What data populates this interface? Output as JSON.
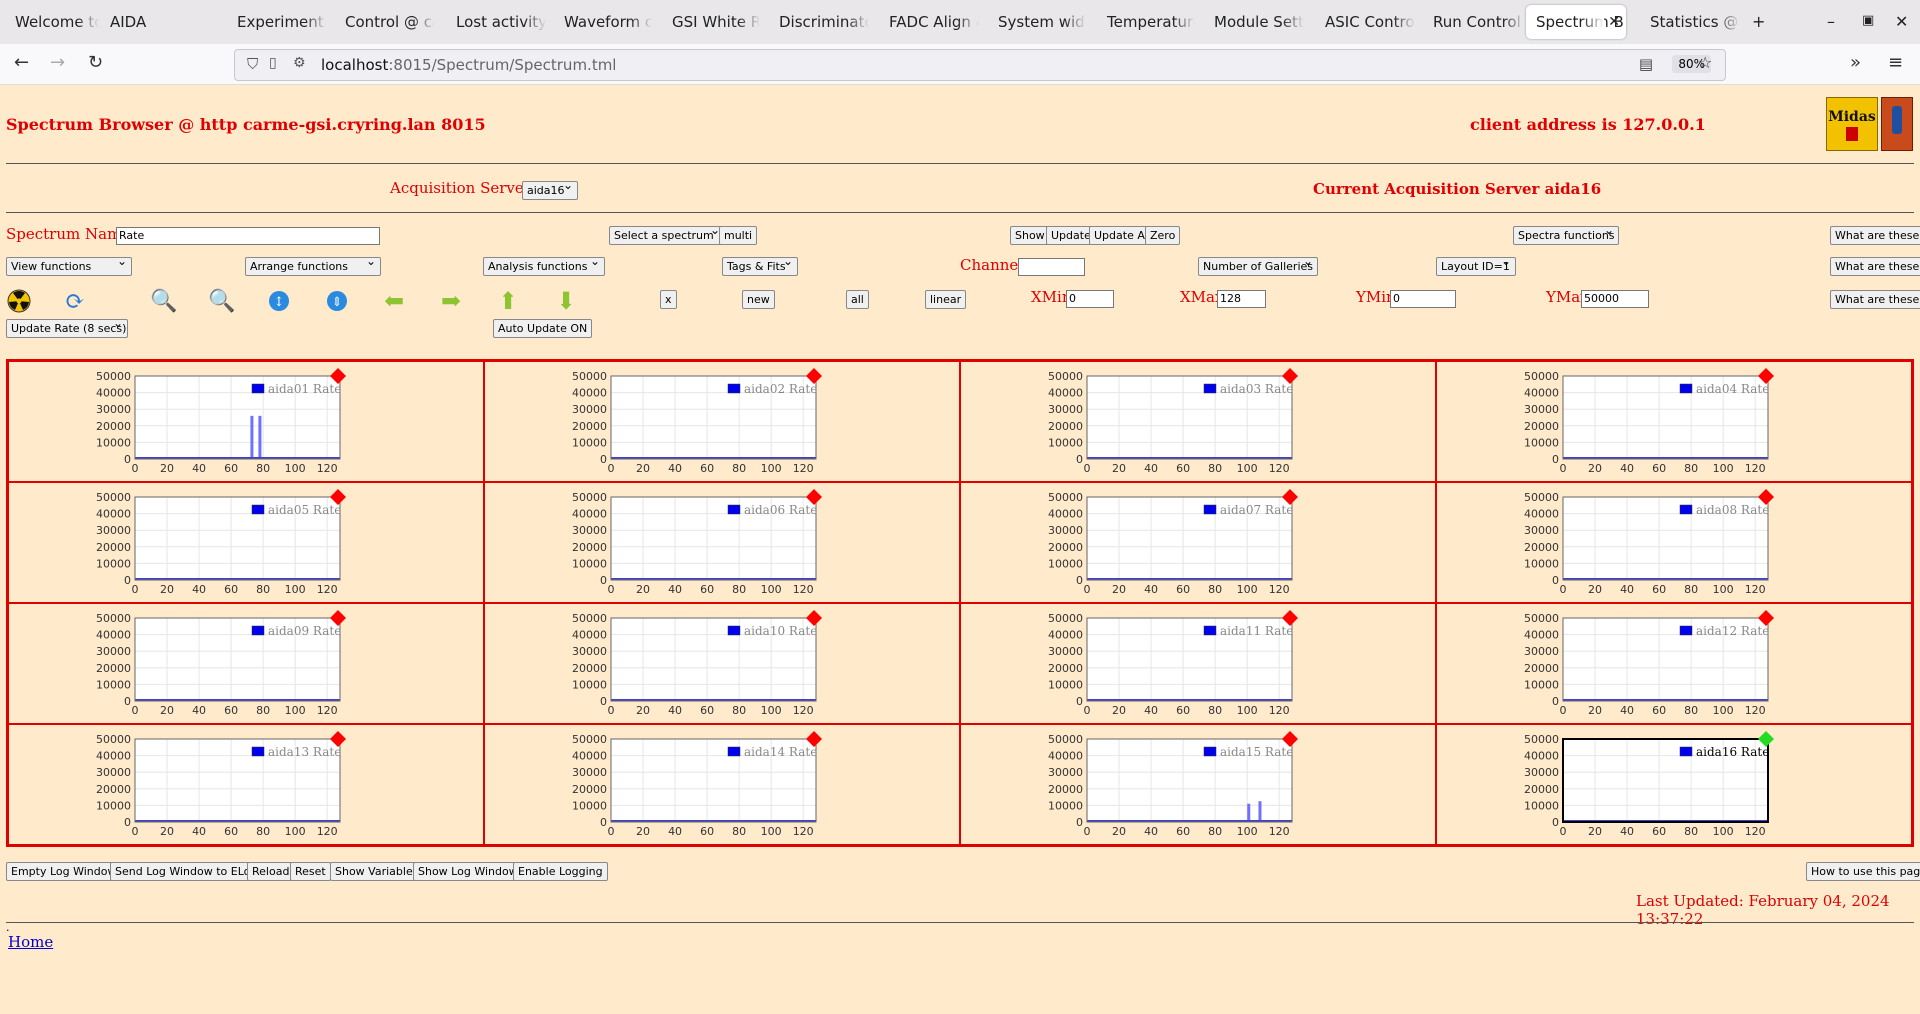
{
  "browser": {
    "tabs": [
      {
        "label": "Welcome to C"
      },
      {
        "label": "AIDA"
      },
      {
        "label": "Experiment C"
      },
      {
        "label": "Control @ ca"
      },
      {
        "label": "Lost activity r"
      },
      {
        "label": "Waveform ca"
      },
      {
        "label": "GSI White Ra"
      },
      {
        "label": "Discriminator"
      },
      {
        "label": "FADC Align &"
      },
      {
        "label": "System wide"
      },
      {
        "label": "Temperature"
      },
      {
        "label": "Module Settir"
      },
      {
        "label": "ASIC Control"
      },
      {
        "label": "Run Control @"
      },
      {
        "label": "Spectrum B"
      },
      {
        "label": "Statistics @"
      }
    ],
    "active_tab_index": 14,
    "new_tab": "+",
    "url_host": "localhost",
    "url_rest": ":8015/Spectrum/Spectrum.tml",
    "zoom": "80%"
  },
  "header": {
    "title": "Spectrum Browser @ http carme-gsi.cryring.lan 8015",
    "client": "client address is 127.0.0.1"
  },
  "acq": {
    "label": "Acquisition Servers",
    "server_select": "aida16",
    "current": "Current Acquisition Server aida16"
  },
  "controls": {
    "spectrum_name_label": "Spectrum Name:",
    "spectrum_name_value": "Rate",
    "select_spectrum": "Select a spectrum",
    "multi": "multi",
    "show": "Show",
    "update": "Update",
    "update_all": "Update All",
    "zero": "Zero",
    "spectra_functions": "Spectra functions",
    "what1": "What are these?",
    "view_functions": "View functions",
    "arrange_functions": "Arrange functions",
    "analysis_functions": "Analysis functions",
    "tags_fits": "Tags & Fits",
    "channel_label": "Channel:",
    "channel_value": "",
    "num_galleries": "Number of Galleries",
    "layout_id": "Layout ID=1",
    "what2": "What are these?",
    "x_btn": "x",
    "new_btn": "new",
    "all_btn": "all",
    "linear_btn": "linear",
    "xmin_label": "XMin",
    "xmin_value": "0",
    "xmax_label": "XMax",
    "xmax_value": "128",
    "ymin_label": "YMin",
    "ymin_value": "0",
    "ymax_label": "YMax",
    "ymax_value": "50000",
    "what3": "What are these?",
    "update_rate": "Update Rate (8 secs)",
    "auto_update": "Auto Update ON"
  },
  "toolbar_icons": [
    "radiation-icon",
    "refresh-icon",
    "zoom-in-icon",
    "zoom-out-icon",
    "expand-y-icon",
    "expand-x-icon",
    "arrow-left-icon",
    "arrow-right-icon",
    "arrow-up-icon",
    "arrow-down-icon"
  ],
  "chart_data": {
    "type": "bar",
    "xlim": [
      0,
      128
    ],
    "ylim": [
      0,
      50000
    ],
    "x_ticks": [
      0,
      20,
      40,
      60,
      80,
      100,
      120
    ],
    "y_ticks": [
      0,
      10000,
      20000,
      30000,
      40000,
      50000
    ],
    "colors": {
      "bars": "#7070ff",
      "legend": "#0000ee",
      "marker_red": "#ff0000",
      "marker_green": "#22dd22",
      "line": "#4040cc"
    },
    "panels": [
      {
        "name": "aida01 Rate",
        "marker": "red",
        "bars": [
          {
            "x": 73,
            "y": 26000
          },
          {
            "x": 78,
            "y": 26000
          }
        ]
      },
      {
        "name": "aida02 Rate",
        "marker": "red",
        "bars": []
      },
      {
        "name": "aida03 Rate",
        "marker": "red",
        "bars": []
      },
      {
        "name": "aida04 Rate",
        "marker": "red",
        "bars": []
      },
      {
        "name": "aida05 Rate",
        "marker": "red",
        "bars": []
      },
      {
        "name": "aida06 Rate",
        "marker": "red",
        "bars": []
      },
      {
        "name": "aida07 Rate",
        "marker": "red",
        "bars": []
      },
      {
        "name": "aida08 Rate",
        "marker": "red",
        "bars": []
      },
      {
        "name": "aida09 Rate",
        "marker": "red",
        "bars": []
      },
      {
        "name": "aida10 Rate",
        "marker": "red",
        "bars": []
      },
      {
        "name": "aida11 Rate",
        "marker": "red",
        "bars": []
      },
      {
        "name": "aida12 Rate",
        "marker": "red",
        "bars": []
      },
      {
        "name": "aida13 Rate",
        "marker": "red",
        "bars": []
      },
      {
        "name": "aida14 Rate",
        "marker": "red",
        "bars": []
      },
      {
        "name": "aida15 Rate",
        "marker": "red",
        "bars": [
          {
            "x": 101,
            "y": 11000
          },
          {
            "x": 108,
            "y": 12500
          }
        ]
      },
      {
        "name": "aida16 Rate",
        "marker": "green",
        "selected": true,
        "bars": []
      }
    ]
  },
  "footer": {
    "empty_log": "Empty Log Window",
    "send_log": "Send Log Window to ELog",
    "reload": "Reload",
    "reset": "Reset",
    "show_variables": "Show Variables",
    "show_log": "Show Log Window",
    "enable_logging": "Enable Logging",
    "how_to": "How to use this page",
    "last_updated": "Last Updated: February 04, 2024 13:37:22",
    "dot": ".",
    "home": "Home"
  }
}
